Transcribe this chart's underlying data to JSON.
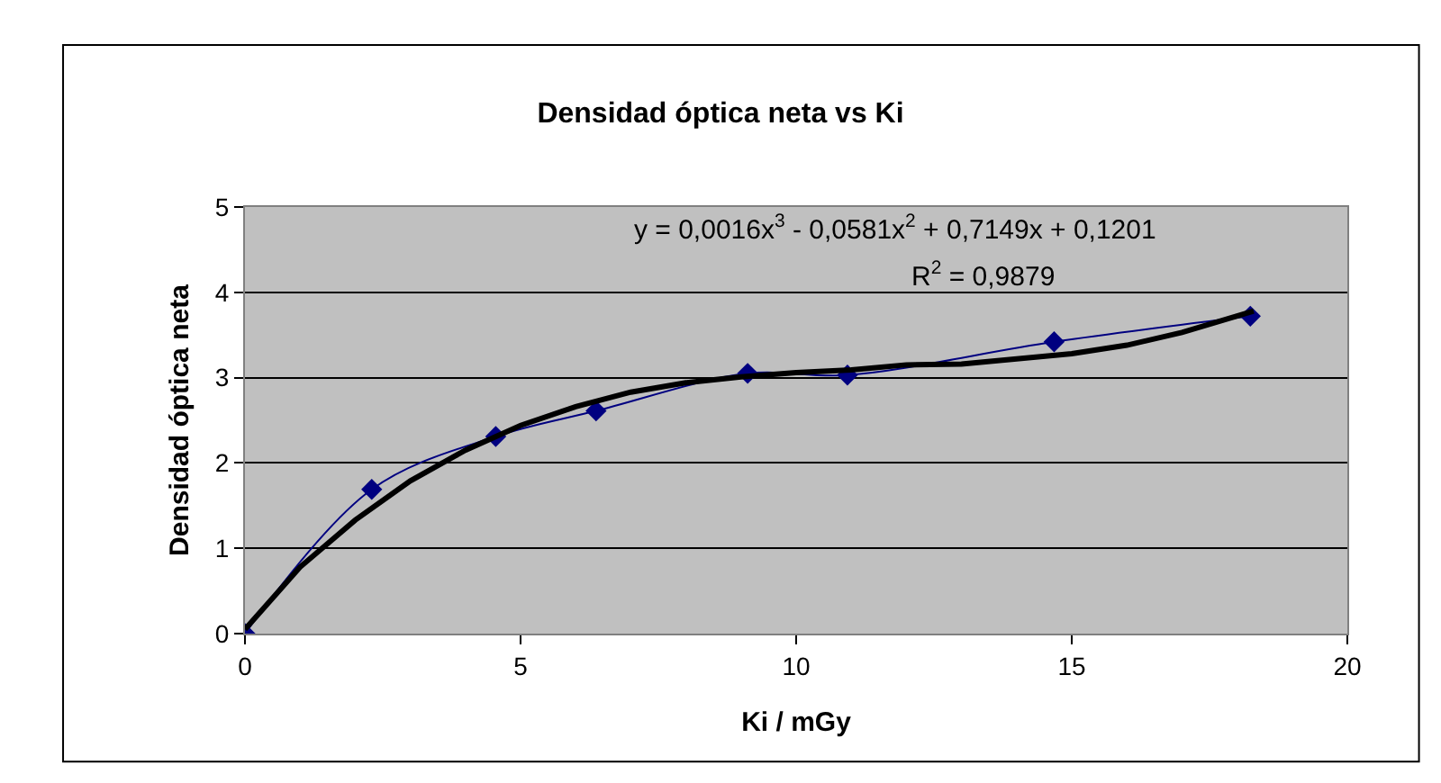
{
  "chart_data": {
    "type": "line",
    "title": "Densidad óptica neta vs Ki",
    "xlabel": "Ki / mGy",
    "ylabel": "Densidad óptica neta",
    "x": [
      0,
      2.3,
      4.55,
      6.37,
      9.12,
      10.93,
      14.68,
      18.24
    ],
    "series": [
      {
        "color": "#000080",
        "values": [
          0,
          1.69,
          2.31,
          2.61,
          3.05,
          3.03,
          3.42,
          3.72
        ],
        "marker": "diamond"
      },
      {
        "color": "#000000",
        "type": "line",
        "marker": "none",
        "x": [
          0,
          1,
          2,
          3,
          4,
          5,
          6,
          7,
          8,
          9,
          10,
          11,
          12,
          13,
          14,
          15,
          16,
          17,
          18.3
        ],
        "values": [
          0.05,
          0.78,
          1.33,
          1.79,
          2.15,
          2.44,
          2.66,
          2.83,
          2.94,
          3.01,
          3.06,
          3.09,
          3.15,
          3.16,
          3.22,
          3.28,
          3.38,
          3.53,
          3.78
        ]
      }
    ],
    "annotations": [
      "y = 0,0016x$^{3}$ - 0,0581x$^{2}$ + 0,7149x + 0,1201",
      "R$^{2}$ = 0,9879"
    ],
    "xlim": [
      0,
      20
    ],
    "xticks": [
      0,
      5,
      10,
      15,
      20
    ],
    "ylim": [
      0,
      5
    ],
    "yticks": [
      0,
      1,
      2,
      3,
      4,
      5
    ],
    "grid": "y",
    "legend": false
  }
}
